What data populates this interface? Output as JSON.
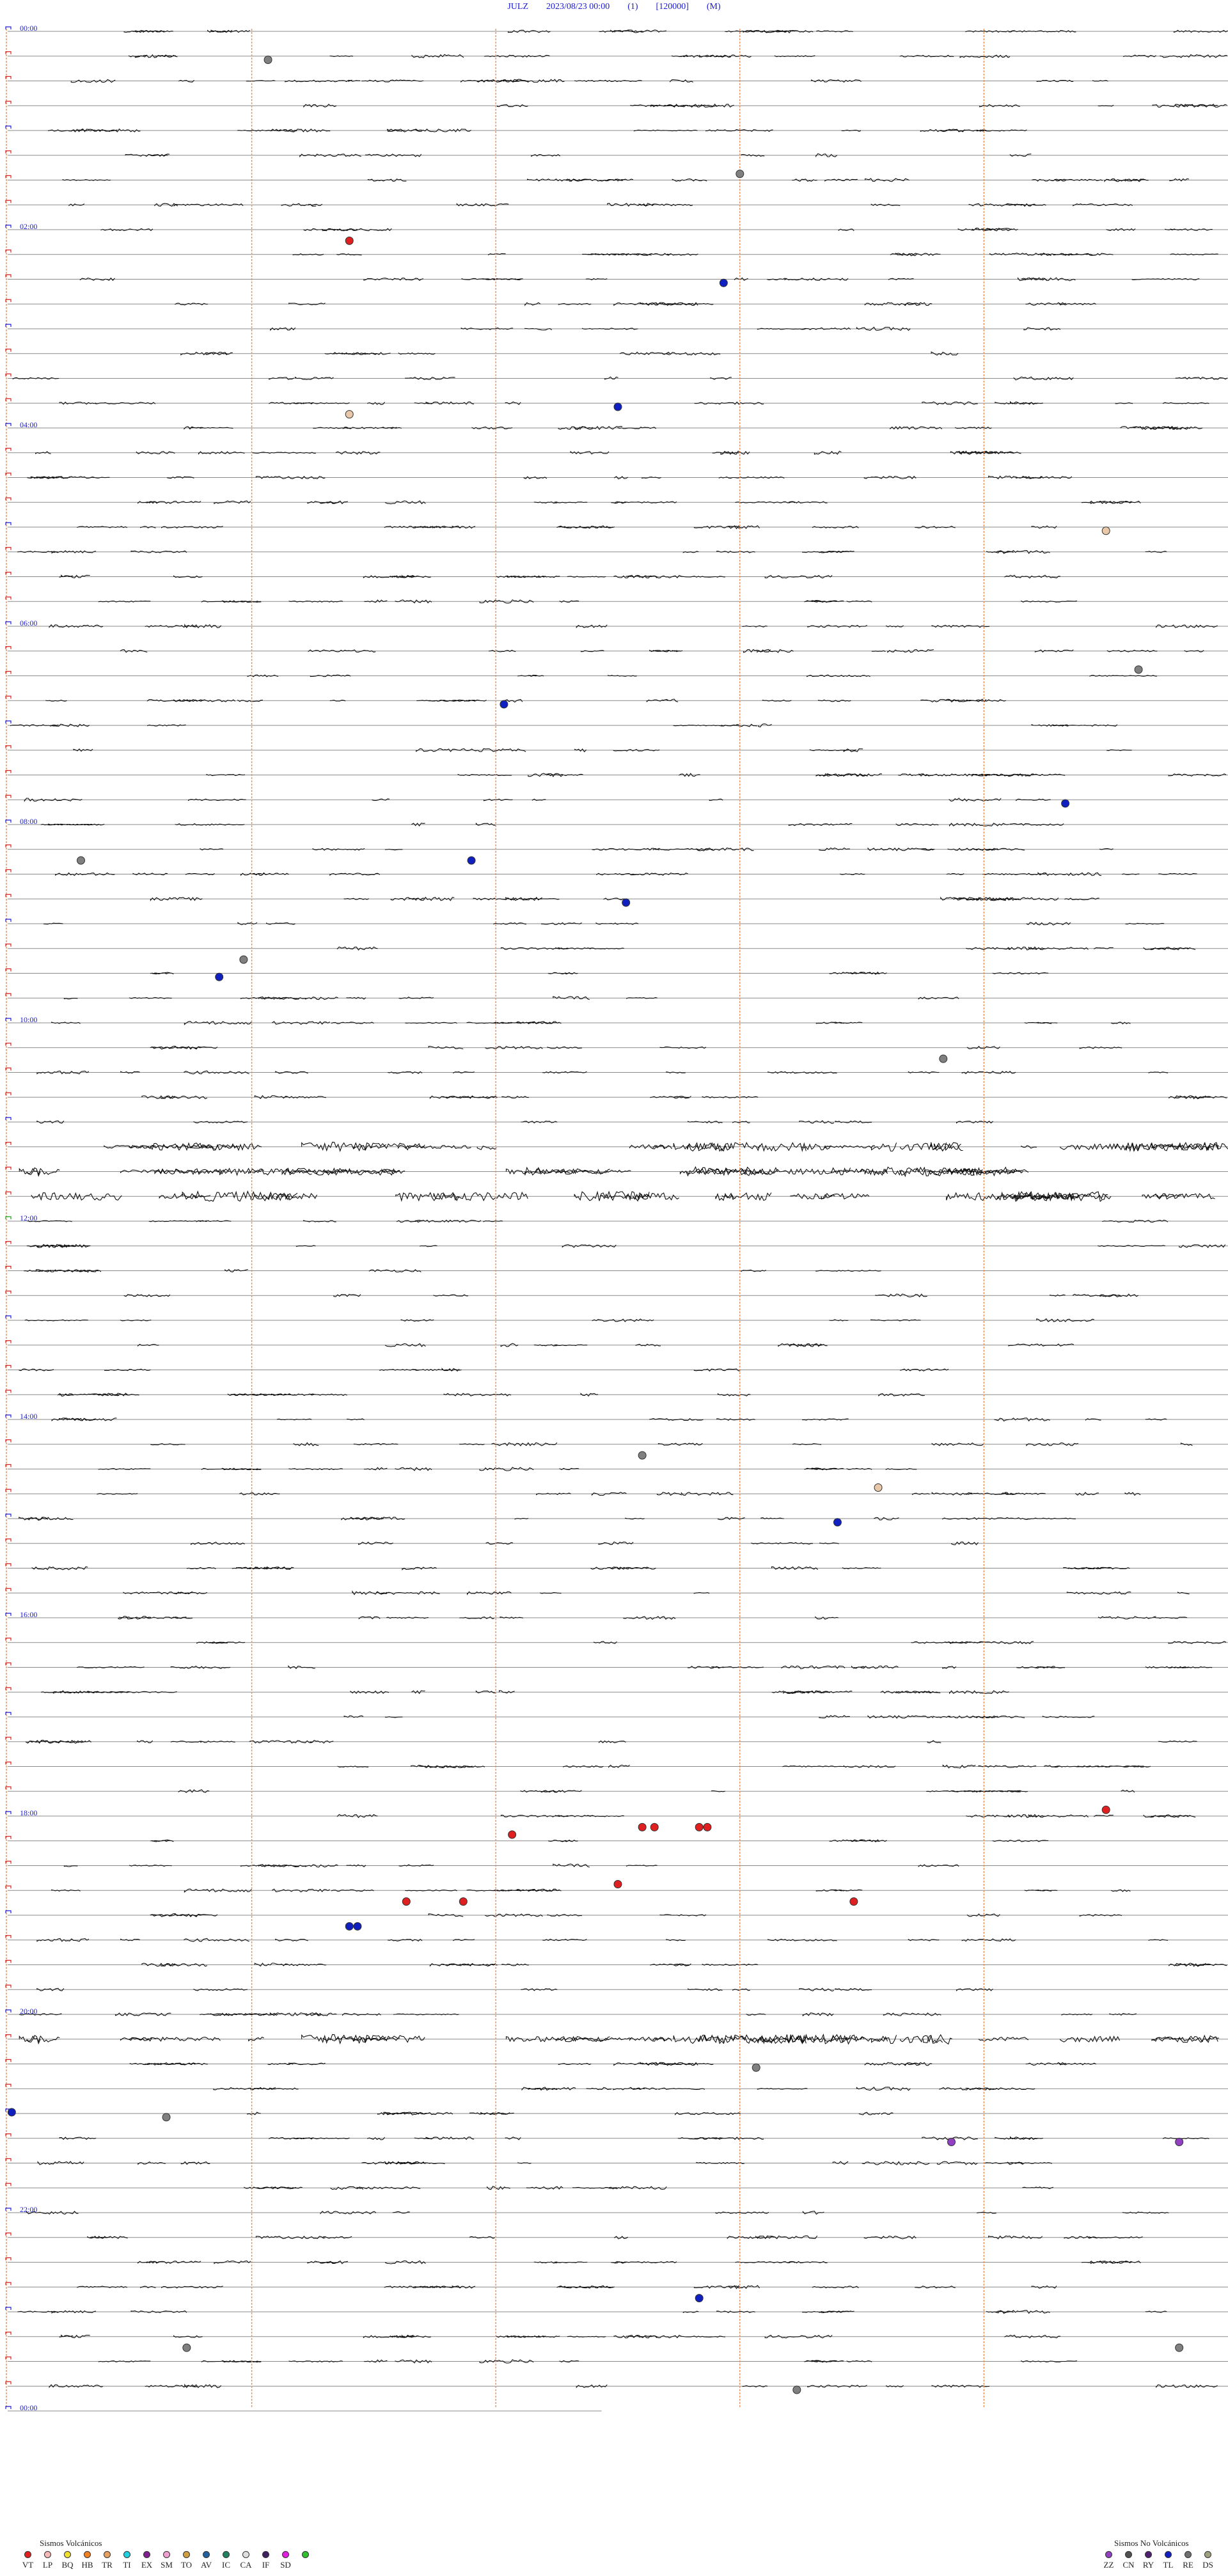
{
  "header": {
    "station": "JULZ",
    "datetime": "2023/08/23 00:00",
    "channel": "(1)",
    "scale": "[120000]",
    "mode": "(M)"
  },
  "colors": {
    "title": "#1b1bd6",
    "hour_label": "#1b1bd6",
    "trace": "#111111",
    "baseline": "#8a8a8a",
    "minute_marker": "#e8905a",
    "frame_marker_red": "#d62020",
    "frame_marker_blue": "#1b1bd6",
    "frame_marker_green": "#18a018"
  },
  "chart_data": {
    "type": "helicorder",
    "rows_per_hour": 4,
    "minutes_per_row": 15,
    "total_rows": 97,
    "minute_marks": [
      0,
      3,
      6,
      9,
      12
    ],
    "hour_labels": [
      {
        "row": 0,
        "label": "00:00"
      },
      {
        "row": 8,
        "label": "02:00"
      },
      {
        "row": 16,
        "label": "04:00"
      },
      {
        "row": 24,
        "label": "06:00"
      },
      {
        "row": 32,
        "label": "08:00"
      },
      {
        "row": 40,
        "label": "10:00"
      },
      {
        "row": 48,
        "label": "12:00"
      },
      {
        "row": 56,
        "label": "14:00"
      },
      {
        "row": 64,
        "label": "16:00"
      },
      {
        "row": 72,
        "label": "18:00"
      },
      {
        "row": 80,
        "label": "20:00"
      },
      {
        "row": 88,
        "label": "22:00"
      },
      {
        "row": 96,
        "label": "00:00"
      }
    ],
    "noisy_rows": [
      45,
      46,
      47,
      81
    ],
    "events": [
      {
        "row": 1.2,
        "minute": 3.2,
        "type": "DS"
      },
      {
        "row": 5.8,
        "minute": 9.0,
        "type": "DS"
      },
      {
        "row": 8.5,
        "minute": 4.2,
        "type": "VT"
      },
      {
        "row": 10.2,
        "minute": 8.8,
        "type": "TL"
      },
      {
        "row": 15.2,
        "minute": 7.5,
        "type": "TL"
      },
      {
        "row": 15.5,
        "minute": 4.2,
        "type": "LP"
      },
      {
        "row": 20.2,
        "minute": 13.5,
        "type": "LP"
      },
      {
        "row": 25.8,
        "minute": 13.9,
        "type": "DS"
      },
      {
        "row": 27.2,
        "minute": 6.1,
        "type": "TL"
      },
      {
        "row": 31.2,
        "minute": 13.0,
        "type": "TL"
      },
      {
        "row": 33.5,
        "minute": 0.9,
        "type": "DS"
      },
      {
        "row": 33.5,
        "minute": 5.7,
        "type": "TL"
      },
      {
        "row": 35.2,
        "minute": 7.6,
        "type": "TL"
      },
      {
        "row": 37.5,
        "minute": 2.9,
        "type": "DS"
      },
      {
        "row": 38.2,
        "minute": 2.6,
        "type": "TL"
      },
      {
        "row": 41.5,
        "minute": 11.5,
        "type": "DS"
      },
      {
        "row": 57.5,
        "minute": 7.8,
        "type": "DS"
      },
      {
        "row": 58.8,
        "minute": 10.7,
        "type": "LP"
      },
      {
        "row": 60.2,
        "minute": 10.2,
        "type": "TL"
      },
      {
        "row": 71.8,
        "minute": 13.5,
        "type": "VT"
      },
      {
        "row": 72.8,
        "minute": 6.2,
        "type": "VT"
      },
      {
        "row": 72.5,
        "minute": 7.8,
        "type": "VT"
      },
      {
        "row": 72.5,
        "minute": 7.95,
        "type": "VT"
      },
      {
        "row": 72.5,
        "minute": 8.5,
        "type": "VT"
      },
      {
        "row": 72.5,
        "minute": 8.6,
        "type": "VT"
      },
      {
        "row": 74.8,
        "minute": 7.5,
        "type": "VT"
      },
      {
        "row": 75.5,
        "minute": 4.9,
        "type": "VT"
      },
      {
        "row": 75.5,
        "minute": 5.6,
        "type": "VT"
      },
      {
        "row": 75.5,
        "minute": 10.4,
        "type": "VT"
      },
      {
        "row": 76.5,
        "minute": 4.2,
        "type": "TL"
      },
      {
        "row": 76.5,
        "minute": 4.3,
        "type": "TL"
      },
      {
        "row": 82.2,
        "minute": 9.2,
        "type": "DS"
      },
      {
        "row": 84.0,
        "minute": 0.05,
        "type": "TL"
      },
      {
        "row": 84.2,
        "minute": 1.95,
        "type": "DS"
      },
      {
        "row": 85.2,
        "minute": 11.6,
        "type": "ZZ"
      },
      {
        "row": 85.2,
        "minute": 14.4,
        "type": "ZZ"
      },
      {
        "row": 91.5,
        "minute": 8.5,
        "type": "TL"
      },
      {
        "row": 93.5,
        "minute": 2.2,
        "type": "DS"
      },
      {
        "row": 93.5,
        "minute": 14.4,
        "type": "DS"
      },
      {
        "row": 95.2,
        "minute": 9.7,
        "type": "DS"
      }
    ]
  },
  "legend_volcanic": {
    "title": "Sismos Volcánicos",
    "items": [
      {
        "code": "VT",
        "color": "#e02020"
      },
      {
        "code": "LP",
        "color": "#f5b9b9"
      },
      {
        "code": "BQ",
        "color": "#f0e030"
      },
      {
        "code": "HB",
        "color": "#f08020"
      },
      {
        "code": "TR",
        "color": "#e8a060"
      },
      {
        "code": "TI",
        "color": "#20d0e0"
      },
      {
        "code": "EX",
        "color": "#802090"
      },
      {
        "code": "SM",
        "color": "#f0a0d0"
      },
      {
        "code": "TO",
        "color": "#d0a040"
      },
      {
        "code": "AV",
        "color": "#2060a0"
      },
      {
        "code": "IC",
        "color": "#208060"
      },
      {
        "code": "CA",
        "color": "#e0e0e0"
      },
      {
        "code": "IF",
        "color": "#402060"
      },
      {
        "code": "SD",
        "color": "#e020e0"
      },
      {
        "code": "",
        "color": "#30c030"
      }
    ]
  },
  "legend_nonvolcanic": {
    "title": "Sismos No Volcánicos",
    "items": [
      {
        "code": "ZZ",
        "color": "#9040c0"
      },
      {
        "code": "CN",
        "color": "#505050"
      },
      {
        "code": "RY",
        "color": "#502070"
      },
      {
        "code": "TL",
        "color": "#1020c0"
      },
      {
        "code": "RE",
        "color": "#707070"
      },
      {
        "code": "DS",
        "color": "#a0a080"
      }
    ]
  }
}
